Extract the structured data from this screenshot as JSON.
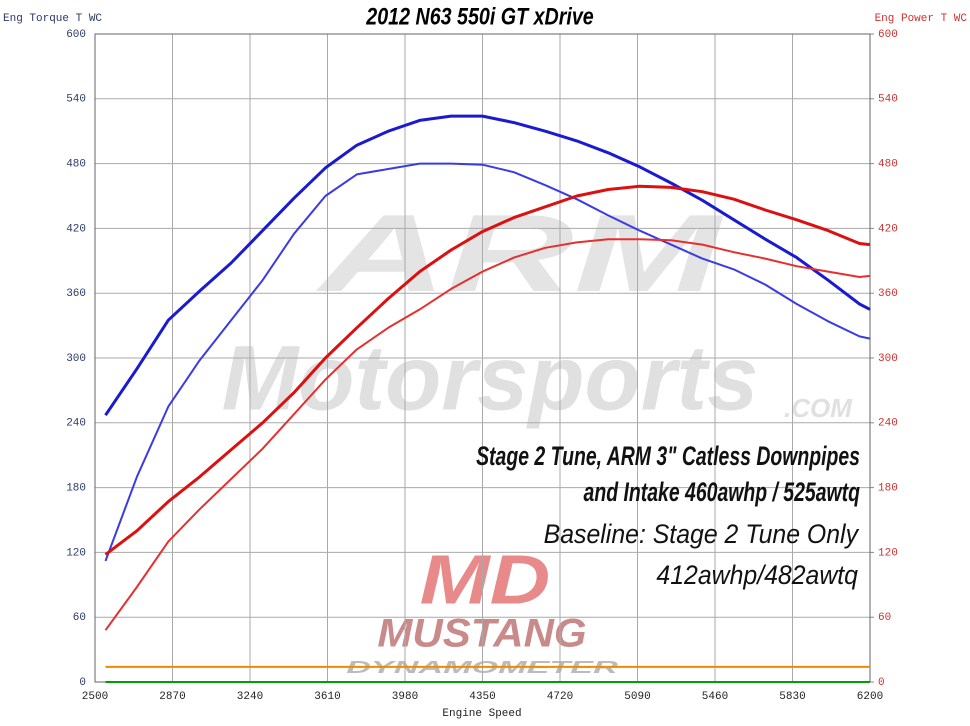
{
  "chart_data": {
    "type": "line",
    "title": "2012 N63 550i GT xDrive",
    "y_label": "Eng Torque T WC",
    "y2_label": "Eng Power T WC",
    "x_label": "Engine Speed",
    "annotations": [
      "Stage 2 Tune, ARM 3\" Catless Downpipes",
      "and Intake 460awhp / 525awtq",
      "Baseline: Stage 2 Tune Only",
      "412awhp/482awtq"
    ],
    "watermarks": [
      "ARM",
      "Motorsports",
      ".COM",
      "MD",
      "MUSTANG",
      "DYNAMOMETER"
    ],
    "x": [
      2550,
      2700,
      2850,
      3000,
      3150,
      3300,
      3450,
      3600,
      3750,
      3900,
      4050,
      4200,
      4350,
      4500,
      4650,
      4800,
      4950,
      5100,
      5250,
      5400,
      5550,
      5700,
      5850,
      6000,
      6150,
      6200
    ],
    "xlim": [
      2500,
      6200
    ],
    "xticks": [
      2500,
      2870,
      3240,
      3610,
      3980,
      4350,
      4720,
      5090,
      5460,
      5830,
      6200
    ],
    "ylim": [
      0,
      600
    ],
    "yticks": [
      0,
      60,
      120,
      180,
      240,
      300,
      360,
      420,
      480,
      540,
      600
    ],
    "y2lim": [
      0,
      600
    ],
    "y2ticks": [
      0,
      60,
      120,
      180,
      240,
      300,
      360,
      420,
      480,
      540,
      600
    ],
    "grid": true,
    "series": [
      {
        "color": "#1a1ad0",
        "width": 3,
        "values": [
          247,
          290,
          335,
          362,
          388,
          418,
          448,
          476,
          497,
          510,
          520,
          524,
          524,
          518,
          510,
          501,
          490,
          477,
          462,
          446,
          428,
          410,
          393,
          372,
          350,
          345
        ]
      },
      {
        "color": "#3b3be6",
        "width": 2,
        "values": [
          112,
          190,
          255,
          298,
          335,
          372,
          415,
          450,
          470,
          475,
          480,
          480,
          479,
          472,
          460,
          447,
          432,
          418,
          405,
          392,
          382,
          368,
          350,
          334,
          320,
          318
        ]
      },
      {
        "color": "#dd1010",
        "width": 3,
        "axis": "y2",
        "values": [
          118,
          140,
          167,
          190,
          215,
          240,
          268,
          300,
          328,
          355,
          380,
          400,
          417,
          430,
          440,
          450,
          456,
          459,
          458,
          454,
          447,
          437,
          428,
          418,
          406,
          405
        ]
      },
      {
        "color": "#e63030",
        "width": 2,
        "axis": "y2",
        "values": [
          48,
          88,
          130,
          160,
          188,
          216,
          248,
          280,
          308,
          328,
          345,
          364,
          380,
          393,
          402,
          407,
          410,
          410,
          409,
          405,
          398,
          392,
          385,
          380,
          375,
          376
        ]
      },
      {
        "color": "#f08a00",
        "width": 2,
        "values": [
          14,
          14,
          14,
          14,
          14,
          14,
          14,
          14,
          14,
          14,
          14,
          14,
          14,
          14,
          14,
          14,
          14,
          14,
          14,
          14,
          14,
          14,
          14,
          14,
          14,
          14
        ]
      },
      {
        "color": "#00a000",
        "width": 2,
        "values": [
          0,
          0,
          0,
          0,
          0,
          0,
          0,
          0,
          0,
          0,
          0,
          0,
          0,
          0,
          0,
          0,
          0,
          0,
          0,
          0,
          0,
          0,
          0,
          0,
          0,
          0
        ]
      }
    ]
  }
}
